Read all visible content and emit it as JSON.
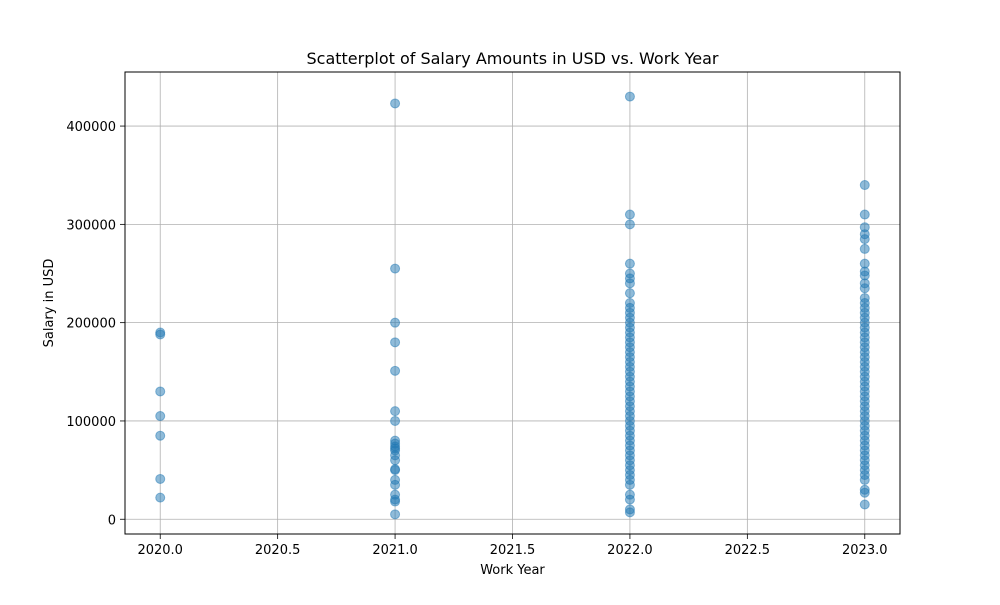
{
  "chart_data": {
    "type": "scatter",
    "title": "Scatterplot of Salary Amounts in USD vs. Work Year",
    "xlabel": "Work Year",
    "ylabel": "Salary in USD",
    "xlim": [
      2019.85,
      2023.15
    ],
    "ylim": [
      -15000,
      455000
    ],
    "xticks": [
      2020.0,
      2020.5,
      2021.0,
      2021.5,
      2022.0,
      2022.5,
      2023.0
    ],
    "xtick_labels": [
      "2020.0",
      "2020.5",
      "2021.0",
      "2021.5",
      "2022.0",
      "2022.5",
      "2023.0"
    ],
    "yticks": [
      0,
      100000,
      200000,
      300000,
      400000
    ],
    "ytick_labels": [
      "0",
      "100000",
      "200000",
      "300000",
      "400000"
    ],
    "grid": true,
    "point_color": "#1f77b4",
    "point_alpha": 0.5,
    "series": [
      {
        "x": 2020,
        "values": [
          190000,
          188000,
          130000,
          105000,
          85000,
          41000,
          22000
        ]
      },
      {
        "x": 2021,
        "values": [
          423000,
          255000,
          200000,
          180000,
          151000,
          110000,
          100000,
          80000,
          77000,
          74000,
          72000,
          70000,
          65000,
          60000,
          51000,
          50000,
          40000,
          35000,
          25000,
          20000,
          18000,
          5000
        ]
      },
      {
        "x": 2022,
        "values": [
          430000,
          310000,
          300000,
          260000,
          250000,
          245000,
          240000,
          230000,
          220000,
          215000,
          210000,
          205000,
          200000,
          195000,
          190000,
          185000,
          180000,
          175000,
          170000,
          165000,
          160000,
          155000,
          150000,
          145000,
          140000,
          135000,
          130000,
          125000,
          120000,
          115000,
          110000,
          105000,
          100000,
          95000,
          90000,
          85000,
          80000,
          75000,
          70000,
          65000,
          60000,
          55000,
          50000,
          45000,
          40000,
          35000,
          25000,
          20000,
          10000,
          7000
        ]
      },
      {
        "x": 2023,
        "values": [
          340000,
          310000,
          297000,
          290000,
          285000,
          275000,
          260000,
          252000,
          248000,
          240000,
          235000,
          225000,
          220000,
          215000,
          210000,
          205000,
          200000,
          195000,
          190000,
          185000,
          180000,
          175000,
          170000,
          165000,
          160000,
          155000,
          150000,
          145000,
          140000,
          135000,
          130000,
          125000,
          120000,
          115000,
          110000,
          105000,
          100000,
          95000,
          90000,
          85000,
          80000,
          75000,
          70000,
          65000,
          60000,
          55000,
          50000,
          45000,
          40000,
          30000,
          27000,
          15000
        ]
      }
    ]
  }
}
